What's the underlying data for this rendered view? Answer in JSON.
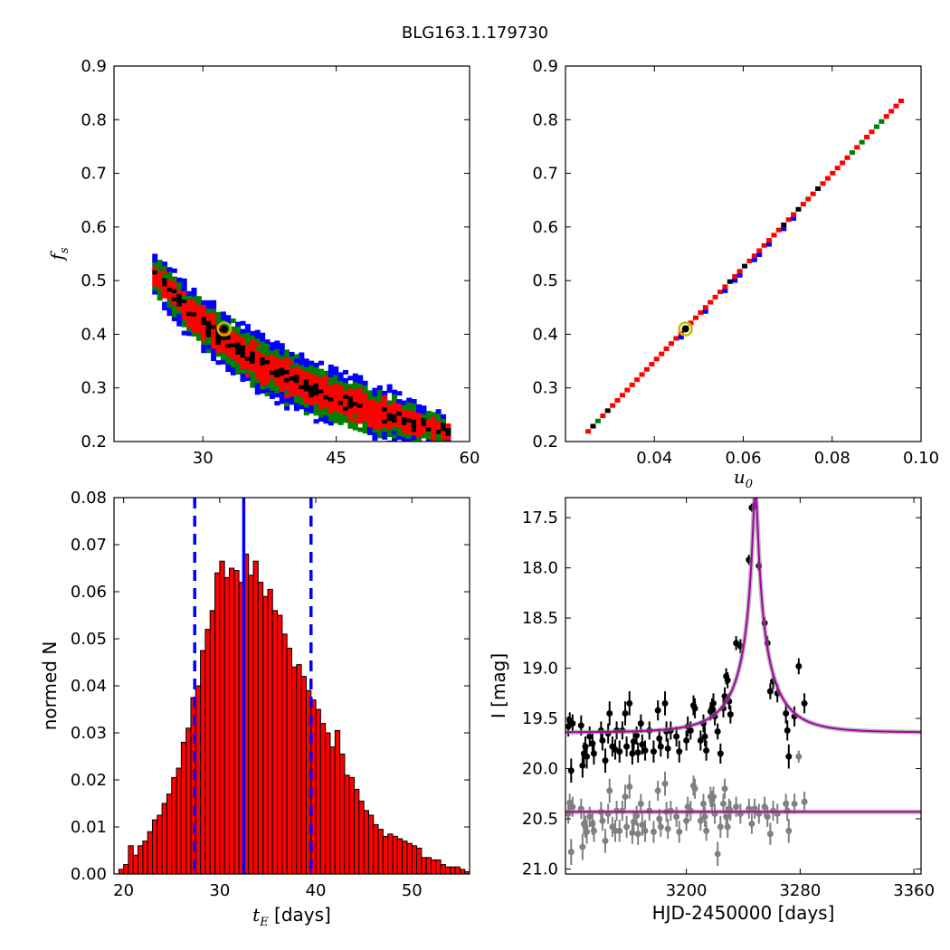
{
  "suptitle": "BLG163.1.179730",
  "colors": {
    "blue": "#0000ff",
    "green": "#007f00",
    "red": "#ff0000",
    "black": "#000000",
    "bar_fill": "#ff0000",
    "best_fit_marker": "#bfbf00",
    "model_curve": "#aa00aa",
    "baseline_model": "#888888",
    "secondary_points": "#808080"
  },
  "chart_data": [
    {
      "type": "heatmap",
      "panel": "tE-vs-fs",
      "xlabel": "",
      "ylabel_math": "f",
      "ylabel_sub": "s",
      "xlim": [
        20,
        60
      ],
      "ylim": [
        0.2,
        0.9
      ],
      "xticks": [
        30,
        45,
        60
      ],
      "yticks": [
        0.2,
        0.3,
        0.4,
        0.5,
        0.6,
        0.7,
        0.8,
        0.9
      ],
      "ytick_labels": [
        "0.2",
        "0.3",
        "0.4",
        "0.5",
        "0.6",
        "0.7",
        "0.8",
        "0.9"
      ],
      "relation": "fs ≈ 12.4 / tE",
      "level_widths": {
        "black": 0.008,
        "red": 0.028,
        "green": 0.042,
        "blue": 0.055
      },
      "x_extent": [
        24.3,
        57.4
      ],
      "best_fit": {
        "x": 32.4,
        "y": 0.41
      }
    },
    {
      "type": "heatmap",
      "panel": "u0-vs-fs",
      "xlabel_math": "u",
      "xlabel_sub": "0",
      "xlim": [
        0.02,
        0.1
      ],
      "ylim": [
        0.2,
        0.9
      ],
      "xticks": [
        0.04,
        0.06,
        0.08,
        0.1
      ],
      "xtick_labels": [
        "0.04",
        "0.06",
        "0.08",
        "0.10"
      ],
      "yticks": [
        0.2,
        0.3,
        0.4,
        0.5,
        0.6,
        0.7,
        0.8,
        0.9
      ],
      "ytick_labels": [
        "0.2",
        "0.3",
        "0.4",
        "0.5",
        "0.6",
        "0.7",
        "0.8",
        "0.9"
      ],
      "relation": "fs ≈ 8.75 × u0",
      "level_widths": {
        "black": 0.0011,
        "red": 0.0028,
        "green": 0.0042,
        "blue": 0.0058
      },
      "x_extent": [
        0.0245,
        0.095
      ],
      "best_fit": {
        "x": 0.047,
        "y": 0.41
      }
    },
    {
      "type": "bar",
      "panel": "tE-histogram",
      "xlabel_math": "t",
      "xlabel_sub": "E",
      "xlabel_suffix": " [days]",
      "ylabel": "normed N",
      "xlim": [
        19,
        56
      ],
      "ylim": [
        0,
        0.08
      ],
      "xticks": [
        20,
        30,
        40,
        50
      ],
      "yticks": [
        0,
        0.01,
        0.02,
        0.03,
        0.04,
        0.05,
        0.06,
        0.07,
        0.08
      ],
      "ytick_labels": [
        "0.00",
        "0.01",
        "0.02",
        "0.03",
        "0.04",
        "0.05",
        "0.06",
        "0.07",
        "0.08"
      ],
      "bin_start": 19.5,
      "bin_width": 0.5,
      "values": [
        0.001,
        0.002,
        0.006,
        0.004,
        0.006,
        0.007,
        0.009,
        0.0115,
        0.0125,
        0.015,
        0.017,
        0.0205,
        0.0225,
        0.028,
        0.031,
        0.0375,
        0.04,
        0.0475,
        0.052,
        0.056,
        0.064,
        0.0665,
        0.063,
        0.065,
        0.0645,
        0.062,
        0.068,
        0.0635,
        0.0665,
        0.062,
        0.059,
        0.0605,
        0.056,
        0.055,
        0.051,
        0.048,
        0.044,
        0.0445,
        0.042,
        0.039,
        0.037,
        0.035,
        0.032,
        0.03,
        0.027,
        0.0305,
        0.0255,
        0.021,
        0.0205,
        0.018,
        0.0155,
        0.0135,
        0.0125,
        0.0105,
        0.0095,
        0.008,
        0.0085,
        0.008,
        0.0075,
        0.007,
        0.0065,
        0.006,
        0.0055,
        0.0035,
        0.0035,
        0.003,
        0.003,
        0.002,
        0.0015,
        0.0015,
        0.0015,
        0.001,
        0.0005,
        0.0005
      ],
      "median": 32.5,
      "interval": [
        27.4,
        39.5
      ]
    },
    {
      "type": "scatter",
      "panel": "light-curve",
      "xlabel": "HJD-2450000 [days]",
      "ylabel": "I [mag]",
      "xlim": [
        3115,
        3365
      ],
      "ylim": [
        21.05,
        17.3
      ],
      "xticks": [
        3200,
        3280,
        3360
      ],
      "yticks": [
        17.5,
        18.0,
        18.5,
        19.0,
        19.5,
        20.0,
        20.5,
        21.0
      ],
      "ytick_labels": [
        "17.5",
        "18.0",
        "18.5",
        "19.0",
        "19.5",
        "20.0",
        "20.5",
        "21.0"
      ],
      "model": {
        "t0": 3248.5,
        "tE": 32.5,
        "u0": 0.047,
        "baseline": 19.64,
        "blend_fraction": 0.41
      },
      "baseline2": 20.43,
      "series": [
        {
          "points": [
            [
              3117,
              19.58,
              0.1
            ],
            [
              3118,
              19.52,
              0.08
            ],
            [
              3119,
              20.02,
              0.12
            ],
            [
              3120,
              19.55,
              0.09
            ],
            [
              3126,
              19.57,
              0.1
            ],
            [
              3127,
              19.97,
              0.12
            ],
            [
              3128,
              19.85,
              0.11
            ],
            [
              3129,
              19.78,
              0.1
            ],
            [
              3130,
              19.88,
              0.12
            ],
            [
              3132,
              19.68,
              0.1
            ],
            [
              3134,
              19.75,
              0.1
            ],
            [
              3135,
              19.85,
              0.11
            ],
            [
              3140,
              19.62,
              0.09
            ],
            [
              3141,
              19.72,
              0.1
            ],
            [
              3143,
              19.92,
              0.12
            ],
            [
              3145,
              19.65,
              0.1
            ],
            [
              3146,
              19.45,
              0.12
            ],
            [
              3148,
              19.78,
              0.1
            ],
            [
              3150,
              19.81,
              0.1
            ],
            [
              3151,
              19.62,
              0.09
            ],
            [
              3153,
              19.83,
              0.11
            ],
            [
              3155,
              19.62,
              0.09
            ],
            [
              3157,
              19.45,
              0.12
            ],
            [
              3158,
              19.78,
              0.1
            ],
            [
              3160,
              19.35,
              0.12
            ],
            [
              3162,
              19.85,
              0.11
            ],
            [
              3163,
              19.73,
              0.1
            ],
            [
              3165,
              19.67,
              0.09
            ],
            [
              3166,
              19.84,
              0.1
            ],
            [
              3168,
              19.55,
              0.09
            ],
            [
              3169,
              19.76,
              0.1
            ],
            [
              3171,
              19.82,
              0.1
            ],
            [
              3174,
              19.62,
              0.09
            ],
            [
              3177,
              19.83,
              0.11
            ],
            [
              3180,
              19.42,
              0.1
            ],
            [
              3181,
              19.7,
              0.1
            ],
            [
              3182,
              19.78,
              0.1
            ],
            [
              3185,
              19.35,
              0.12
            ],
            [
              3186,
              19.63,
              0.1
            ],
            [
              3187,
              19.8,
              0.1
            ],
            [
              3189,
              19.62,
              0.09
            ],
            [
              3193,
              19.68,
              0.1
            ],
            [
              3195,
              19.83,
              0.11
            ],
            [
              3200,
              19.72,
              0.1
            ],
            [
              3201,
              19.58,
              0.1
            ],
            [
              3203,
              19.62,
              0.09
            ],
            [
              3205,
              19.37,
              0.1
            ],
            [
              3206,
              19.4,
              0.1
            ],
            [
              3210,
              19.72,
              0.1
            ],
            [
              3212,
              19.55,
              0.09
            ],
            [
              3213,
              19.68,
              0.1
            ],
            [
              3214,
              19.82,
              0.1
            ],
            [
              3217,
              19.43,
              0.09
            ],
            [
              3218,
              19.4,
              0.1
            ],
            [
              3219,
              19.35,
              0.1
            ],
            [
              3220,
              19.48,
              0.09
            ],
            [
              3222,
              19.63,
              0.08
            ],
            [
              3224,
              19.85,
              0.1
            ],
            [
              3226,
              19.4,
              0.09
            ],
            [
              3227,
              19.28,
              0.09
            ],
            [
              3228,
              19.08,
              0.08
            ],
            [
              3229,
              19.12,
              0.08
            ],
            [
              3230,
              19.33,
              0.08
            ],
            [
              3231,
              19.46,
              0.09
            ],
            [
              3235,
              18.75,
              0.07
            ],
            [
              3238,
              18.78,
              0.07
            ],
            [
              3244,
              17.92,
              0.05
            ],
            [
              3246,
              17.4,
              0.04
            ],
            [
              3248,
              17.38,
              0.04
            ],
            [
              3251,
              17.98,
              0.05
            ],
            [
              3255,
              18.55,
              0.06
            ],
            [
              3257,
              18.75,
              0.07
            ],
            [
              3259,
              19.23,
              0.08
            ],
            [
              3261,
              19.13,
              0.08
            ],
            [
              3264,
              19.25,
              0.09
            ],
            [
              3270,
              19.45,
              0.1
            ],
            [
              3271,
              19.62,
              0.1
            ],
            [
              3272,
              19.88,
              0.12
            ],
            [
              3276,
              19.48,
              0.1
            ],
            [
              3279,
              18.98,
              0.08
            ],
            [
              3283,
              19.35,
              0.1
            ]
          ]
        },
        {
          "points": [
            [
              3117,
              20.45,
              0.1
            ],
            [
              3118,
              20.34,
              0.09
            ],
            [
              3119,
              20.83,
              0.13
            ],
            [
              3120,
              20.38,
              0.1
            ],
            [
              3126,
              20.4,
              0.1
            ],
            [
              3127,
              20.78,
              0.13
            ],
            [
              3128,
              20.55,
              0.11
            ],
            [
              3129,
              20.58,
              0.11
            ],
            [
              3130,
              20.63,
              0.12
            ],
            [
              3132,
              20.48,
              0.1
            ],
            [
              3134,
              20.55,
              0.11
            ],
            [
              3135,
              20.62,
              0.11
            ],
            [
              3140,
              20.43,
              0.1
            ],
            [
              3141,
              20.52,
              0.1
            ],
            [
              3143,
              20.72,
              0.12
            ],
            [
              3145,
              20.45,
              0.1
            ],
            [
              3146,
              20.22,
              0.12
            ],
            [
              3148,
              20.58,
              0.1
            ],
            [
              3150,
              20.62,
              0.11
            ],
            [
              3151,
              20.42,
              0.1
            ],
            [
              3153,
              20.62,
              0.11
            ],
            [
              3155,
              20.42,
              0.1
            ],
            [
              3157,
              20.28,
              0.12
            ],
            [
              3158,
              20.58,
              0.11
            ],
            [
              3160,
              20.18,
              0.12
            ],
            [
              3162,
              20.64,
              0.11
            ],
            [
              3163,
              20.53,
              0.1
            ],
            [
              3165,
              20.47,
              0.1
            ],
            [
              3166,
              20.65,
              0.11
            ],
            [
              3168,
              20.35,
              0.1
            ],
            [
              3169,
              20.56,
              0.11
            ],
            [
              3171,
              20.62,
              0.11
            ],
            [
              3174,
              20.42,
              0.1
            ],
            [
              3177,
              20.63,
              0.11
            ],
            [
              3180,
              20.22,
              0.1
            ],
            [
              3181,
              20.5,
              0.1
            ],
            [
              3182,
              20.58,
              0.1
            ],
            [
              3185,
              20.15,
              0.12
            ],
            [
              3186,
              20.43,
              0.1
            ],
            [
              3187,
              20.6,
              0.1
            ],
            [
              3189,
              20.42,
              0.1
            ],
            [
              3193,
              20.48,
              0.1
            ],
            [
              3195,
              20.63,
              0.11
            ],
            [
              3200,
              20.52,
              0.1
            ],
            [
              3201,
              20.38,
              0.1
            ],
            [
              3203,
              20.42,
              0.1
            ],
            [
              3205,
              20.17,
              0.1
            ],
            [
              3206,
              20.2,
              0.1
            ],
            [
              3210,
              20.52,
              0.1
            ],
            [
              3212,
              20.35,
              0.1
            ],
            [
              3213,
              20.48,
              0.1
            ],
            [
              3214,
              20.62,
              0.1
            ],
            [
              3217,
              20.28,
              0.1
            ],
            [
              3218,
              20.32,
              0.1
            ],
            [
              3219,
              20.28,
              0.1
            ],
            [
              3220,
              20.45,
              0.1
            ],
            [
              3222,
              20.85,
              0.12
            ],
            [
              3224,
              20.58,
              0.11
            ],
            [
              3226,
              20.35,
              0.1
            ],
            [
              3227,
              20.2,
              0.1
            ],
            [
              3228,
              20.48,
              0.1
            ],
            [
              3229,
              20.58,
              0.11
            ],
            [
              3230,
              20.4,
              0.1
            ],
            [
              3231,
              20.42,
              0.1
            ],
            [
              3235,
              20.38,
              0.1
            ],
            [
              3238,
              20.45,
              0.1
            ],
            [
              3244,
              20.4,
              0.1
            ],
            [
              3246,
              20.55,
              0.1
            ],
            [
              3248,
              20.4,
              0.1
            ],
            [
              3251,
              20.45,
              0.1
            ],
            [
              3255,
              20.38,
              0.1
            ],
            [
              3257,
              20.48,
              0.1
            ],
            [
              3259,
              20.65,
              0.11
            ],
            [
              3261,
              20.42,
              0.1
            ],
            [
              3264,
              20.45,
              0.1
            ],
            [
              3270,
              20.35,
              0.1
            ],
            [
              3271,
              20.42,
              0.1
            ],
            [
              3272,
              20.62,
              0.12
            ],
            [
              3276,
              20.35,
              0.1
            ],
            [
              3279,
              19.88,
              0.06
            ],
            [
              3283,
              20.33,
              0.1
            ]
          ]
        }
      ]
    }
  ]
}
